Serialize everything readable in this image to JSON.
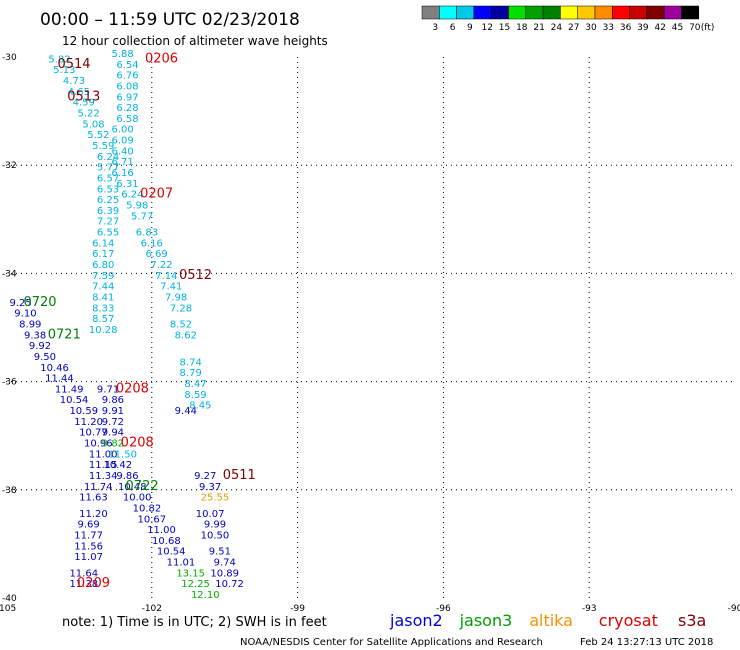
{
  "header": {
    "title": "00:00 – 11:59 UTC 02/23/2018",
    "subtitle": "12 hour collection of altimeter wave heights"
  },
  "colorbar": {
    "labels": [
      "3",
      "6",
      "9",
      "12",
      "15",
      "18",
      "21",
      "24",
      "27",
      "30",
      "33",
      "36",
      "39",
      "42",
      "45",
      "70"
    ],
    "unit": "(ft)",
    "colors": [
      "#808080",
      "#00ffff",
      "#00c8e6",
      "#0000ff",
      "#0000a0",
      "#00e000",
      "#00a000",
      "#008000",
      "#ffff00",
      "#ffc800",
      "#ff8c00",
      "#ff0000",
      "#c80000",
      "#800000",
      "#a000a0",
      "#000000"
    ]
  },
  "chart_data": {
    "type": "scatter",
    "xlim": [
      -105,
      -90
    ],
    "ylim": [
      -40,
      -30
    ],
    "xticks": [
      {
        "value": -105,
        "label": "-105"
      },
      {
        "value": -102,
        "label": "-102"
      },
      {
        "value": -99,
        "label": "-99"
      },
      {
        "value": -96,
        "label": "-96"
      },
      {
        "value": -93,
        "label": "-93"
      },
      {
        "value": -90,
        "label": "-90"
      }
    ],
    "yticks": [
      {
        "value": -30,
        "label": "-30"
      },
      {
        "value": -32,
        "label": "-32"
      },
      {
        "value": -34,
        "label": "-34"
      },
      {
        "value": -36,
        "label": "-36"
      },
      {
        "value": -38,
        "label": "-38"
      },
      {
        "value": -40,
        "label": "-40"
      }
    ],
    "grid": true,
    "series": [
      {
        "name": "jason2",
        "color": "#0000c0",
        "points": [
          {
            "x": -104.7,
            "y": -34.6,
            "v": "9.25"
          },
          {
            "x": -104.6,
            "y": -34.8,
            "v": "9.10"
          },
          {
            "x": -104.5,
            "y": -35.0,
            "v": "8.99"
          },
          {
            "x": -104.4,
            "y": -35.2,
            "v": "9.38"
          },
          {
            "x": -104.3,
            "y": -35.4,
            "v": "9.92"
          },
          {
            "x": -104.2,
            "y": -35.6,
            "v": "9.50"
          },
          {
            "x": -104.0,
            "y": -35.8,
            "v": "10.46"
          },
          {
            "x": -103.9,
            "y": -36.0,
            "v": "11.44"
          },
          {
            "x": -103.7,
            "y": -36.2,
            "v": "11.49"
          },
          {
            "x": -103.6,
            "y": -36.4,
            "v": "10.54"
          },
          {
            "x": -103.4,
            "y": -36.6,
            "v": "10.59"
          },
          {
            "x": -103.3,
            "y": -36.8,
            "v": "11.20"
          },
          {
            "x": -103.2,
            "y": -37.0,
            "v": "10.77"
          },
          {
            "x": -103.1,
            "y": -37.2,
            "v": "10.96"
          },
          {
            "x": -103.0,
            "y": -37.4,
            "v": "11.00"
          },
          {
            "x": -103.0,
            "y": -37.6,
            "v": "11.15"
          },
          {
            "x": -103.0,
            "y": -37.8,
            "v": "11.34"
          },
          {
            "x": -103.1,
            "y": -38.0,
            "v": "11.74"
          },
          {
            "x": -103.2,
            "y": -38.2,
            "v": "11.63"
          },
          {
            "x": -103.2,
            "y": -38.5,
            "v": "11.20"
          },
          {
            "x": -103.3,
            "y": -38.7,
            "v": "9.69"
          },
          {
            "x": -103.3,
            "y": -38.9,
            "v": "11.77"
          },
          {
            "x": -103.3,
            "y": -39.1,
            "v": "11.56"
          },
          {
            "x": -103.3,
            "y": -39.3,
            "v": "11.07"
          },
          {
            "x": -103.4,
            "y": -39.6,
            "v": "11.64"
          },
          {
            "x": -103.4,
            "y": -39.8,
            "v": "11.38"
          },
          {
            "x": -102.9,
            "y": -36.2,
            "v": "9.71"
          },
          {
            "x": -102.8,
            "y": -36.4,
            "v": "9.86"
          },
          {
            "x": -102.8,
            "y": -36.6,
            "v": "9.91"
          },
          {
            "x": -102.8,
            "y": -36.8,
            "v": "9.72"
          },
          {
            "x": -102.8,
            "y": -37.0,
            "v": "9.94"
          },
          {
            "x": -102.7,
            "y": -37.6,
            "v": "10.42"
          },
          {
            "x": -102.5,
            "y": -37.8,
            "v": "9.86"
          },
          {
            "x": -102.4,
            "y": -38.0,
            "v": "10.48"
          },
          {
            "x": -102.3,
            "y": -38.2,
            "v": "10.00"
          },
          {
            "x": -102.1,
            "y": -38.4,
            "v": "10.82"
          },
          {
            "x": -102.0,
            "y": -38.6,
            "v": "10.67"
          },
          {
            "x": -101.8,
            "y": -38.8,
            "v": "11.00"
          },
          {
            "x": -101.7,
            "y": -39.0,
            "v": "10.68"
          },
          {
            "x": -101.6,
            "y": -39.2,
            "v": "10.54"
          },
          {
            "x": -101.4,
            "y": -39.4,
            "v": "11.01"
          },
          {
            "x": -101.3,
            "y": -36.6,
            "v": "9.44"
          },
          {
            "x": -100.9,
            "y": -37.8,
            "v": "9.27"
          },
          {
            "x": -100.8,
            "y": -38.0,
            "v": "9.37"
          },
          {
            "x": -100.8,
            "y": -38.5,
            "v": "10.07"
          },
          {
            "x": -100.7,
            "y": -38.7,
            "v": "9.99"
          },
          {
            "x": -100.7,
            "y": -38.9,
            "v": "10.50"
          },
          {
            "x": -100.6,
            "y": -39.2,
            "v": "9.51"
          },
          {
            "x": -100.5,
            "y": -39.4,
            "v": "9.74"
          },
          {
            "x": -100.5,
            "y": -39.6,
            "v": "10.89"
          },
          {
            "x": -100.4,
            "y": -39.8,
            "v": "10.72"
          }
        ]
      },
      {
        "name": "jason3",
        "color": "#00b000",
        "points": [
          {
            "x": -102.8,
            "y": -37.2,
            "v": "9.82"
          },
          {
            "x": -101.2,
            "y": -39.6,
            "v": "13.15"
          },
          {
            "x": -101.1,
            "y": -39.8,
            "v": "12.25"
          },
          {
            "x": -100.9,
            "y": -40.0,
            "v": "12.10"
          }
        ]
      },
      {
        "name": "altika",
        "color": "#e0a000",
        "points": [
          {
            "x": -100.7,
            "y": -38.2,
            "v": "25.55"
          }
        ]
      },
      {
        "name": "cryosat",
        "color": "#00b4e0",
        "points": [
          {
            "x": -103.9,
            "y": -30.1,
            "v": "5.82"
          },
          {
            "x": -103.8,
            "y": -30.3,
            "v": "5.13"
          },
          {
            "x": -103.6,
            "y": -30.5,
            "v": "4.73"
          },
          {
            "x": -103.5,
            "y": -30.7,
            "v": "4.65"
          },
          {
            "x": -103.4,
            "y": -30.9,
            "v": "4.59"
          },
          {
            "x": -103.3,
            "y": -31.1,
            "v": "5.22"
          },
          {
            "x": -103.2,
            "y": -31.3,
            "v": "5.08"
          },
          {
            "x": -103.1,
            "y": -31.5,
            "v": "5.52"
          },
          {
            "x": -103.0,
            "y": -31.7,
            "v": "5.59"
          },
          {
            "x": -102.9,
            "y": -31.9,
            "v": "6.24"
          },
          {
            "x": -102.9,
            "y": -32.1,
            "v": "5.77"
          },
          {
            "x": -102.9,
            "y": -32.3,
            "v": "6.57"
          },
          {
            "x": -102.9,
            "y": -32.5,
            "v": "6.53"
          },
          {
            "x": -102.9,
            "y": -32.7,
            "v": "6.25"
          },
          {
            "x": -102.9,
            "y": -32.9,
            "v": "6.39"
          },
          {
            "x": -102.9,
            "y": -33.1,
            "v": "7.27"
          },
          {
            "x": -102.9,
            "y": -33.3,
            "v": "6.55"
          },
          {
            "x": -103.0,
            "y": -33.5,
            "v": "6.14"
          },
          {
            "x": -103.0,
            "y": -33.7,
            "v": "6.17"
          },
          {
            "x": -103.0,
            "y": -33.9,
            "v": "6.80"
          },
          {
            "x": -103.0,
            "y": -34.1,
            "v": "7.59"
          },
          {
            "x": -103.0,
            "y": -34.3,
            "v": "7.44"
          },
          {
            "x": -103.0,
            "y": -34.5,
            "v": "8.41"
          },
          {
            "x": -103.0,
            "y": -34.7,
            "v": "8.33"
          },
          {
            "x": -103.0,
            "y": -34.9,
            "v": "8.57"
          },
          {
            "x": -103.0,
            "y": -35.1,
            "v": "10.28"
          },
          {
            "x": -102.6,
            "y": -30.0,
            "v": "5.88"
          },
          {
            "x": -102.5,
            "y": -30.2,
            "v": "6.54"
          },
          {
            "x": -102.5,
            "y": -30.4,
            "v": "6.76"
          },
          {
            "x": -102.5,
            "y": -30.6,
            "v": "6.08"
          },
          {
            "x": -102.5,
            "y": -30.8,
            "v": "6.97"
          },
          {
            "x": -102.5,
            "y": -31.0,
            "v": "6.28"
          },
          {
            "x": -102.5,
            "y": -31.2,
            "v": "6.58"
          },
          {
            "x": -102.6,
            "y": -31.4,
            "v": "6.00"
          },
          {
            "x": -102.6,
            "y": -31.6,
            "v": "6.09"
          },
          {
            "x": -102.6,
            "y": -31.8,
            "v": "6.40"
          },
          {
            "x": -102.6,
            "y": -32.0,
            "v": "6.71"
          },
          {
            "x": -102.6,
            "y": -32.2,
            "v": "6.16"
          },
          {
            "x": -102.5,
            "y": -32.4,
            "v": "6.31"
          },
          {
            "x": -102.4,
            "y": -32.6,
            "v": "6.24"
          },
          {
            "x": -102.3,
            "y": -32.8,
            "v": "5.98"
          },
          {
            "x": -102.2,
            "y": -33.0,
            "v": "5.77"
          },
          {
            "x": -102.1,
            "y": -33.3,
            "v": "6.83"
          },
          {
            "x": -102.0,
            "y": -33.5,
            "v": "6.16"
          },
          {
            "x": -101.9,
            "y": -33.7,
            "v": "6.69"
          },
          {
            "x": -101.8,
            "y": -33.9,
            "v": "7.22"
          },
          {
            "x": -101.7,
            "y": -34.1,
            "v": "7.14"
          },
          {
            "x": -101.6,
            "y": -34.3,
            "v": "7.41"
          },
          {
            "x": -101.5,
            "y": -34.5,
            "v": "7.98"
          },
          {
            "x": -101.4,
            "y": -34.7,
            "v": "7.28"
          },
          {
            "x": -101.4,
            "y": -35.0,
            "v": "8.52"
          },
          {
            "x": -101.3,
            "y": -35.2,
            "v": "8.62"
          },
          {
            "x": -101.2,
            "y": -35.7,
            "v": "8.74"
          },
          {
            "x": -101.2,
            "y": -35.9,
            "v": "8.79"
          },
          {
            "x": -101.1,
            "y": -36.1,
            "v": "8.47"
          },
          {
            "x": -101.1,
            "y": -36.3,
            "v": "8.59"
          },
          {
            "x": -101.0,
            "y": -36.5,
            "v": "8.45"
          },
          {
            "x": -102.6,
            "y": -37.4,
            "v": "11.50"
          }
        ]
      },
      {
        "name": "s3a",
        "color": "#800000",
        "points": []
      }
    ],
    "pass_labels": [
      {
        "x": -103.6,
        "y": -30.2,
        "text": "0514",
        "color": "#800000"
      },
      {
        "x": -101.8,
        "y": -30.1,
        "text": "0206",
        "color": "#e00000"
      },
      {
        "x": -103.4,
        "y": -30.8,
        "text": "0513",
        "color": "#800000"
      },
      {
        "x": -101.9,
        "y": -32.6,
        "text": "0207",
        "color": "#e00000"
      },
      {
        "x": -101.1,
        "y": -34.1,
        "text": "0512",
        "color": "#800000"
      },
      {
        "x": -104.3,
        "y": -34.6,
        "text": "0720",
        "color": "#008000"
      },
      {
        "x": -103.8,
        "y": -35.2,
        "text": "0721",
        "color": "#008000"
      },
      {
        "x": -102.4,
        "y": -36.2,
        "text": "0208",
        "color": "#e00000"
      },
      {
        "x": -102.3,
        "y": -37.2,
        "text": "0208",
        "color": "#e00000"
      },
      {
        "x": -100.2,
        "y": -37.8,
        "text": "0511",
        "color": "#800000"
      },
      {
        "x": -102.2,
        "y": -38.0,
        "text": "0722",
        "color": "#008000"
      },
      {
        "x": -103.2,
        "y": -39.8,
        "text": "0209",
        "color": "#e00000"
      }
    ]
  },
  "footer": {
    "note": "note:  1) Time is in UTC; 2) SWH is in feet",
    "credit": "NOAA/NESDIS Center for Satellite Applications and Research",
    "timestamp": "Feb 24 13:27:13 UTC 2018"
  },
  "legend": [
    {
      "name": "jason2",
      "color": "#0000e0"
    },
    {
      "name": "jason3",
      "color": "#00a000"
    },
    {
      "name": "altika",
      "color": "#ff9000"
    },
    {
      "name": "cryosat",
      "color": "#e00000"
    },
    {
      "name": "s3a",
      "color": "#800000"
    }
  ]
}
